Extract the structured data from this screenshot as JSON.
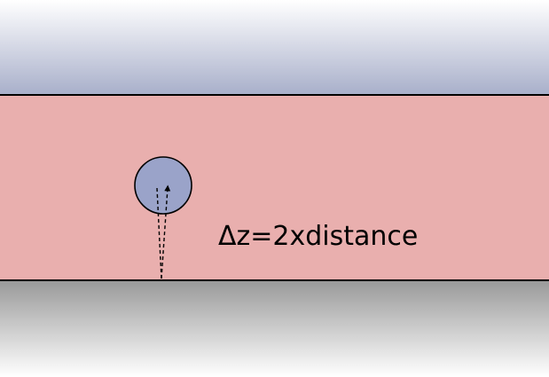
{
  "diagram": {
    "equation_label": "Δz=2xdistance",
    "colors": {
      "top_region_gradient_start": "#ffffff",
      "top_region_gradient_end": "#a8afca",
      "middle_layer_fill": "#e9afae",
      "bottom_region_gradient_start": "#999999",
      "bottom_region_gradient_end": "#ffffff",
      "particle_fill": "#9aa3c9",
      "boundary_line": "#000000"
    },
    "elements": {
      "particle": "circle",
      "path": "dashed-arrow-up-and-back"
    }
  }
}
